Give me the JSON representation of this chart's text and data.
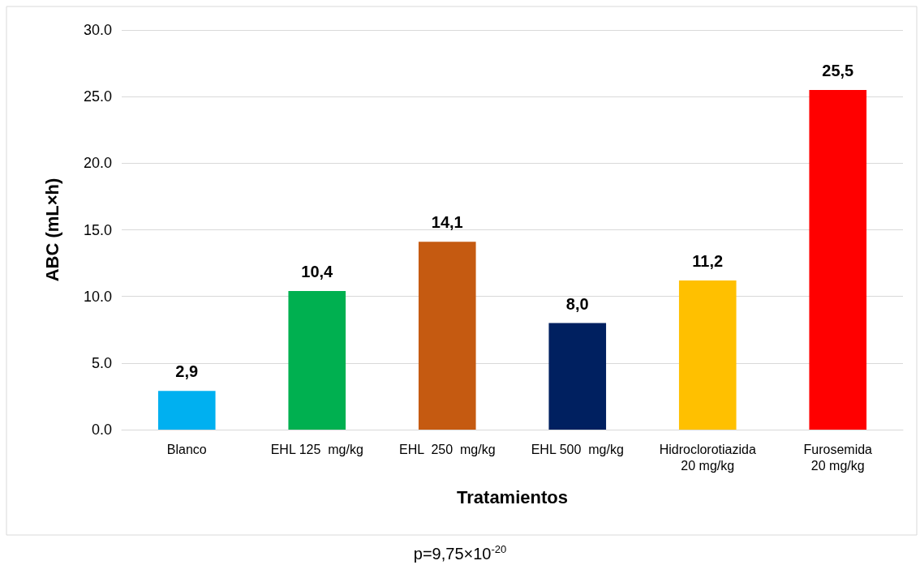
{
  "chart_data": {
    "type": "bar",
    "categories": [
      "Blanco",
      "EHL 125  mg/kg",
      "EHL  250  mg/kg",
      "EHL 500  mg/kg",
      "Hidroclorotiazida\n20 mg/kg",
      "Furosemida\n20 mg/kg"
    ],
    "values": [
      2.9,
      10.4,
      14.1,
      8.0,
      11.2,
      25.5
    ],
    "colors": [
      "#00b0f0",
      "#00b050",
      "#c55a11",
      "#002060",
      "#ffc000",
      "#ff0000"
    ],
    "value_labels": [
      "2,9",
      "10,4",
      "14,1",
      "8,0",
      "11,2",
      "25,5"
    ],
    "ylabel": "ABC (mL×h)",
    "xlabel": "Tratamientos",
    "ylim": [
      0,
      30
    ],
    "yticks": [
      {
        "value": 0,
        "label": "0.0"
      },
      {
        "value": 5,
        "label": "5.0"
      },
      {
        "value": 10,
        "label": "10.0"
      },
      {
        "value": 15,
        "label": "15.0"
      },
      {
        "value": 20,
        "label": "20.0"
      },
      {
        "value": 25,
        "label": "25.0"
      },
      {
        "value": 30,
        "label": "30.0"
      }
    ],
    "grid": "y",
    "annotations": [
      "p=9,75×10$^{-20}$"
    ]
  }
}
